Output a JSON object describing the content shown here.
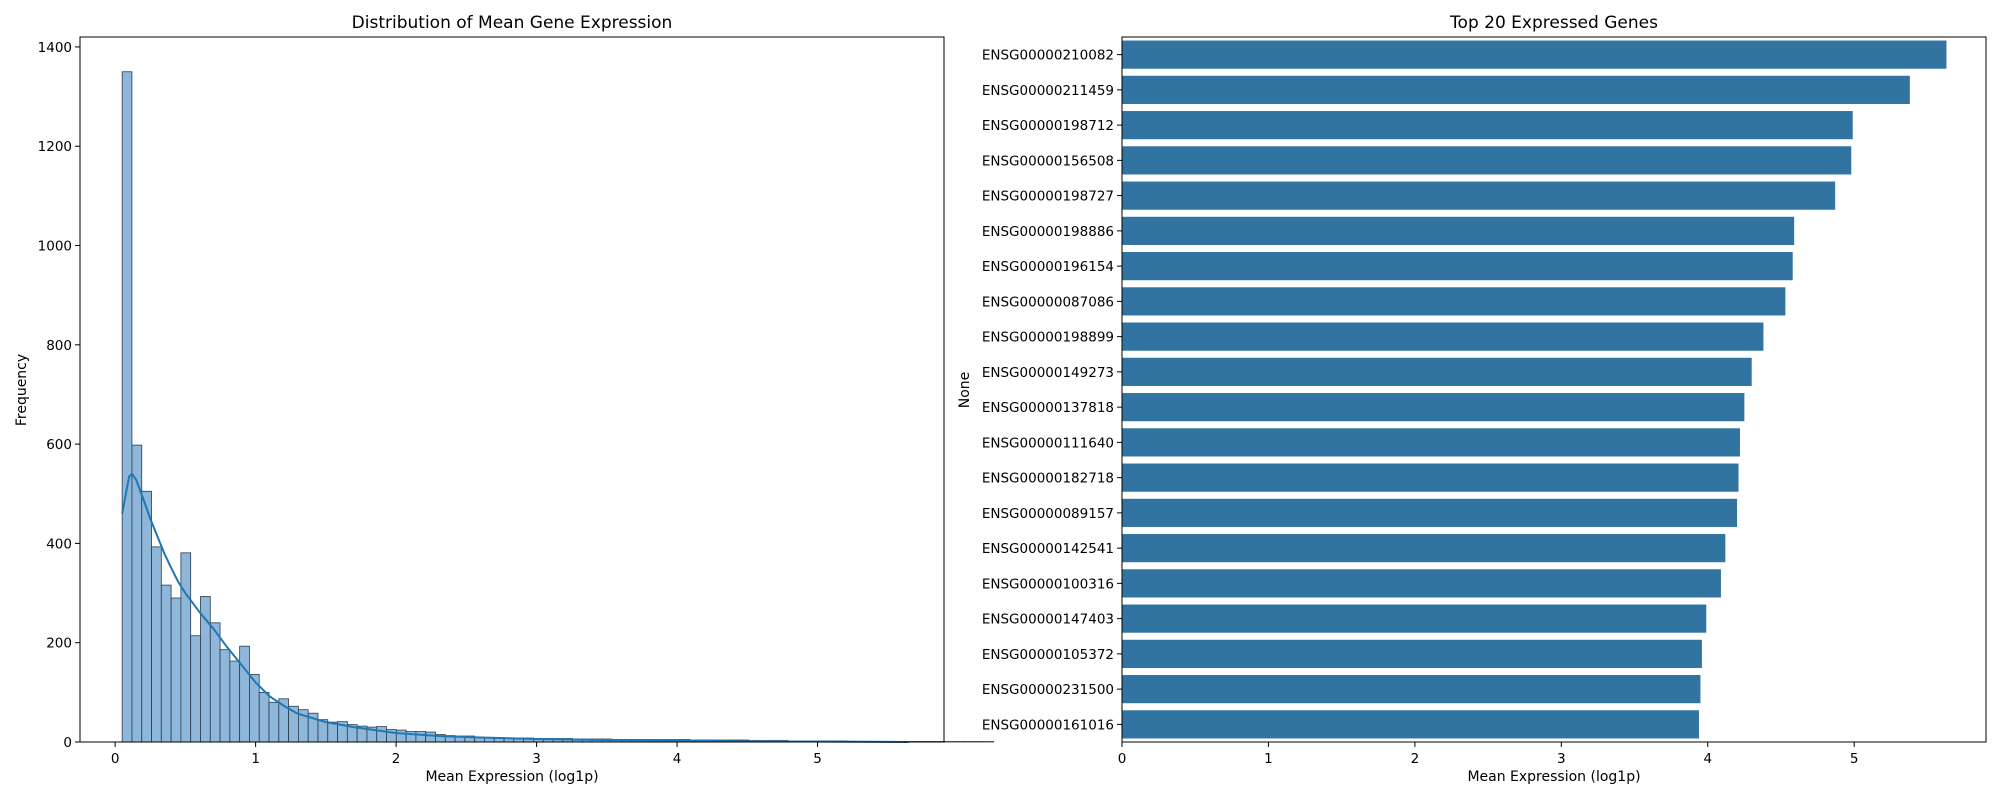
{
  "chart_data": [
    {
      "type": "bar",
      "title": "Distribution of Mean Gene Expression",
      "xlabel": "Mean Expression (log1p)",
      "ylabel": "Frequency",
      "xlim": [
        -0.25,
        5.9
      ],
      "ylim": [
        0,
        1420
      ],
      "xticks": [
        "0",
        "1",
        "2",
        "3",
        "4",
        "5"
      ],
      "yticks": [
        "0",
        "200",
        "400",
        "600",
        "800",
        "1000",
        "1200",
        "1400"
      ],
      "grid": false,
      "bin_start": 0.05,
      "bin_width": 0.0697,
      "bar_color": "#8FB7D9",
      "edge_color": "#2A3C4F",
      "kde_color": "#1F77B4",
      "counts": [
        1350,
        598,
        505,
        393,
        316,
        290,
        381,
        214,
        293,
        240,
        186,
        163,
        193,
        136,
        100,
        80,
        87,
        72,
        65,
        58,
        45,
        40,
        41,
        35,
        32,
        30,
        31,
        25,
        24,
        21,
        21,
        20,
        15,
        13,
        12,
        12,
        10,
        9,
        9,
        8,
        8,
        8,
        7,
        7,
        7,
        7,
        6,
        6,
        6,
        6,
        5,
        5,
        5,
        5,
        5,
        5,
        5,
        5,
        4,
        4,
        4,
        4,
        4,
        4,
        3,
        3,
        3,
        3,
        2,
        2,
        2,
        2,
        2,
        2,
        1,
        1,
        1,
        1,
        1,
        1,
        1,
        1,
        1,
        1,
        1,
        1,
        1,
        1,
        1
      ],
      "kde": {
        "x": [
          0.05,
          0.1,
          0.12,
          0.15,
          0.2,
          0.25,
          0.3,
          0.35,
          0.4,
          0.45,
          0.5,
          0.6,
          0.7,
          0.8,
          0.9,
          1.0,
          1.1,
          1.2,
          1.3,
          1.5,
          1.7,
          2.0,
          2.3,
          2.6,
          3.0,
          3.5,
          4.0,
          4.5,
          5.0,
          5.65
        ],
        "y": [
          460,
          535,
          540,
          528,
          490,
          450,
          415,
          380,
          350,
          322,
          300,
          262,
          228,
          190,
          155,
          120,
          92,
          73,
          57,
          40,
          30,
          18,
          12,
          9,
          6,
          4,
          3,
          1,
          1,
          0
        ]
      }
    },
    {
      "type": "bar",
      "orientation": "horizontal",
      "title": "Top 20 Expressed Genes",
      "xlabel": "Mean Expression (log1p)",
      "ylabel": "None",
      "xlim": [
        0,
        5.9
      ],
      "xticks": [
        "0",
        "1",
        "2",
        "3",
        "4",
        "5"
      ],
      "grid": false,
      "bar_color": "#3274A1",
      "categories": [
        "ENSG00000210082",
        "ENSG00000211459",
        "ENSG00000198712",
        "ENSG00000156508",
        "ENSG00000198727",
        "ENSG00000198886",
        "ENSG00000196154",
        "ENSG00000087086",
        "ENSG00000198899",
        "ENSG00000149273",
        "ENSG00000137818",
        "ENSG00000111640",
        "ENSG00000182718",
        "ENSG00000089157",
        "ENSG00000142541",
        "ENSG00000100316",
        "ENSG00000147403",
        "ENSG00000105372",
        "ENSG00000231500",
        "ENSG00000161016"
      ],
      "values": [
        5.63,
        5.38,
        4.99,
        4.98,
        4.87,
        4.59,
        4.58,
        4.53,
        4.38,
        4.3,
        4.25,
        4.22,
        4.21,
        4.2,
        4.12,
        4.09,
        3.99,
        3.96,
        3.95,
        3.94
      ]
    }
  ]
}
